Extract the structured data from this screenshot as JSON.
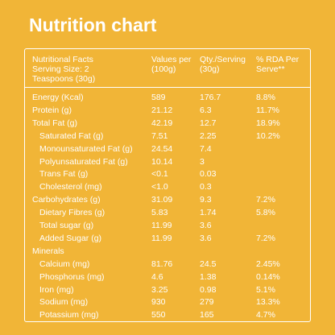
{
  "title": "Nutrition chart",
  "table": {
    "header": [
      [
        "Nutritional Facts",
        "Serving Size: 2",
        "Teaspoons (30g)"
      ],
      [
        "Values per",
        "(100g)"
      ],
      [
        "Qty./Serving",
        "(30g)"
      ],
      [
        "% RDA Per",
        "Serve**"
      ]
    ],
    "rows": [
      {
        "cells": [
          "Energy (Kcal)",
          "589",
          "176.7",
          "8.8%"
        ]
      },
      {
        "cells": [
          "Protein (g)",
          "21.12",
          "6.3",
          "11.7%"
        ]
      },
      {
        "cells": [
          "Total Fat (g)",
          "42.19",
          "12.7",
          "18.9%"
        ],
        "subrows": [
          {
            "cells": [
              "Saturated Fat (g)",
              "7.51",
              "2.25",
              "10.2%"
            ]
          },
          {
            "cells": [
              "Monounsaturated Fat (g)",
              "24.54",
              "7.4",
              null
            ]
          },
          {
            "cells": [
              "Polyunsaturated Fat (g)",
              "10.14",
              "3",
              null
            ]
          },
          {
            "cells": [
              "Trans Fat (g)",
              "<0.1",
              "0.03",
              null
            ]
          },
          {
            "cells": [
              "Cholesterol (mg)",
              "<1.0",
              "0.3",
              null
            ]
          }
        ]
      },
      {
        "cells": [
          "Carbohydrates (g)",
          "31.09",
          "9.3",
          "7.2%"
        ],
        "subrows": [
          {
            "cells": [
              "Dietary Fibres (g)",
              "5.83",
              "1.74",
              "5.8%"
            ]
          },
          {
            "cells": [
              "Total sugar (g)",
              "11.99",
              "3.6",
              null
            ]
          },
          {
            "cells": [
              "Added Sugar (g)",
              "11.99",
              "3.6",
              "7.2%"
            ]
          }
        ]
      },
      {
        "cells": [
          "Minerals",
          null,
          null,
          null
        ],
        "subrows": [
          {
            "cells": [
              "Calcium (mg)",
              "81.76",
              "24.5",
              "2.45%"
            ]
          },
          {
            "cells": [
              "Phosphorus (mg)",
              "4.6",
              "1.38",
              "0.14%"
            ]
          },
          {
            "cells": [
              "Iron (mg)",
              "3.25",
              "0.98",
              "5.1%"
            ]
          },
          {
            "cells": [
              "Sodium (mg)",
              "930",
              "279",
              "13.3%"
            ]
          },
          {
            "cells": [
              "Potassium (mg)",
              "550",
              "165",
              "4.7%"
            ]
          }
        ]
      }
    ]
  }
}
